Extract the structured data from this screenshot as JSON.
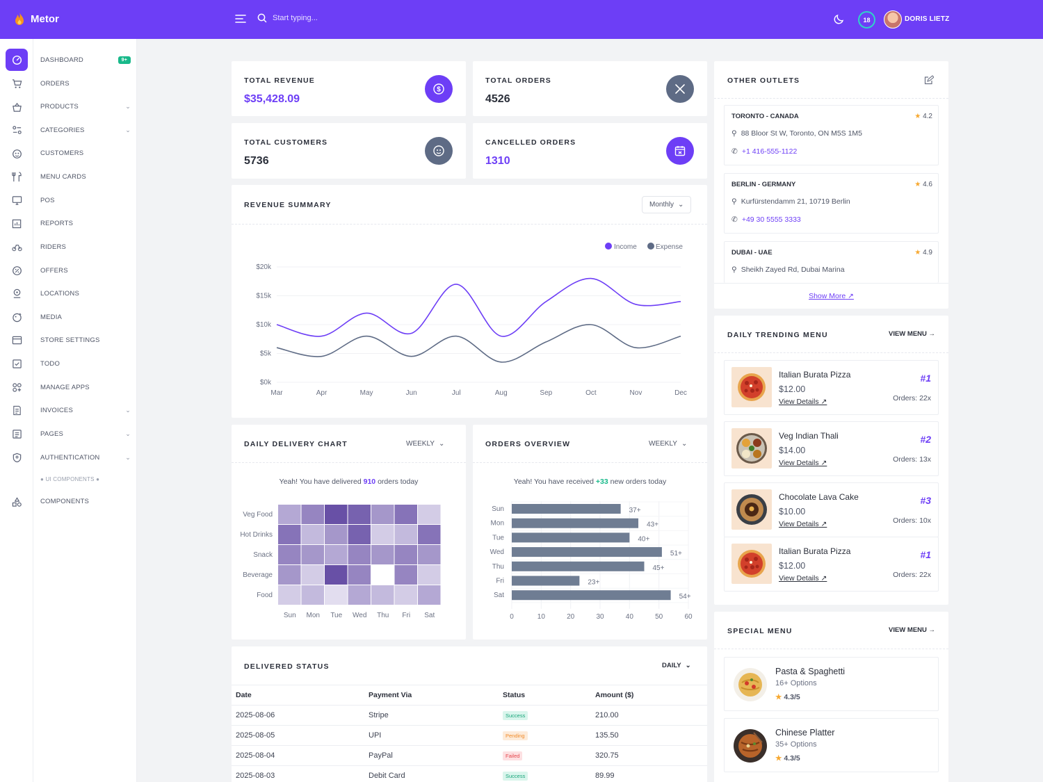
{
  "app": {
    "name": "Metor"
  },
  "header": {
    "search_placeholder": "Start typing...",
    "notification_count": "18",
    "user_name": "DORIS LIETZ"
  },
  "sidebar": {
    "items": [
      {
        "label": "DASHBOARD",
        "badge": "9+"
      },
      {
        "label": "ORDERS"
      },
      {
        "label": "PRODUCTS"
      },
      {
        "label": "CATEGORIES"
      },
      {
        "label": "CUSTOMERS"
      },
      {
        "label": "MENU CARDS"
      },
      {
        "label": "POS"
      },
      {
        "label": "REPORTS"
      },
      {
        "label": "RIDERS"
      },
      {
        "label": "OFFERS"
      },
      {
        "label": "LOCATIONS"
      },
      {
        "label": "MEDIA"
      },
      {
        "label": "STORE SETTINGS"
      },
      {
        "label": "TODO"
      },
      {
        "label": "MANAGE APPS"
      },
      {
        "label": "INVOICES"
      },
      {
        "label": "PAGES"
      },
      {
        "label": "AUTHENTICATION"
      }
    ],
    "section_label": "UI COMPONENTS",
    "components_label": "COMPONENTS"
  },
  "stats": {
    "revenue": {
      "label": "TOTAL REVENUE",
      "value": "$35,428.09"
    },
    "orders": {
      "label": "TOTAL ORDERS",
      "value": "4526"
    },
    "customers": {
      "label": "TOTAL CUSTOMERS",
      "value": "5736"
    },
    "cancelled": {
      "label": "CANCELLED ORDERS",
      "value": "1310"
    }
  },
  "revenue_summary": {
    "title": "REVENUE SUMMARY",
    "period": "Monthly"
  },
  "daily_delivery": {
    "title": "DAILY DELIVERY CHART",
    "period": "WEEKLY",
    "msg_prefix": "Yeah! You have delivered",
    "msg_count": "910",
    "msg_suffix": "orders today"
  },
  "orders_overview": {
    "title": "ORDERS OVERVIEW",
    "period": "WEEKLY",
    "msg_prefix": "Yeah! You have received",
    "msg_count": "+33",
    "msg_suffix": "new orders today"
  },
  "delivered_status": {
    "title": "DELIVERED STATUS",
    "period": "DAILY",
    "headers": [
      "Date",
      "Payment Via",
      "Status",
      "Amount ($)"
    ],
    "rows": [
      {
        "date": "2025-08-06",
        "via": "Stripe",
        "status": "Success",
        "amount": "210.00"
      },
      {
        "date": "2025-08-05",
        "via": "UPI",
        "status": "Pending",
        "amount": "135.50"
      },
      {
        "date": "2025-08-04",
        "via": "PayPal",
        "status": "Failed",
        "amount": "320.75"
      },
      {
        "date": "2025-08-03",
        "via": "Debit Card",
        "status": "Success",
        "amount": "89.99"
      }
    ]
  },
  "outlets": {
    "title": "OTHER OUTLETS",
    "items": [
      {
        "name": "TORONTO - CANADA",
        "rating": "4.2",
        "address": "88 Bloor St W, Toronto, ON M5S 1M5",
        "phone": "+1 416-555-1122"
      },
      {
        "name": "BERLIN - GERMANY",
        "rating": "4.6",
        "address": "Kurfürstendamm 21, 10719 Berlin",
        "phone": "+49 30 5555 3333"
      },
      {
        "name": "DUBAI - UAE",
        "rating": "4.9",
        "address": "Sheikh Zayed Rd, Dubai Marina"
      }
    ],
    "show_more": "Show More"
  },
  "trending": {
    "title": "DAILY TRENDING MENU",
    "view_label": "VIEW MENU",
    "items": [
      {
        "name": "Italian Burata Pizza",
        "price": "$12.00",
        "link": "View Details",
        "rank": "#1",
        "orders": "Orders: 22x"
      },
      {
        "name": "Veg Indian Thali",
        "price": "$14.00",
        "link": "View Details",
        "rank": "#2",
        "orders": "Orders: 13x"
      },
      {
        "name": "Chocolate Lava Cake",
        "price": "$10.00",
        "link": "View Details",
        "rank": "#3",
        "orders": "Orders: 10x"
      },
      {
        "name": "Italian Burata Pizza",
        "price": "$12.00",
        "link": "View Details",
        "rank": "#1",
        "orders": "Orders: 22x"
      }
    ]
  },
  "special": {
    "title": "SPECIAL MENU",
    "view_label": "VIEW MENU",
    "items": [
      {
        "name": "Pasta & Spaghetti",
        "options": "16+ Options",
        "rating": "4.3/5"
      },
      {
        "name": "Chinese Platter",
        "options": "35+ Options",
        "rating": "4.3/5"
      }
    ]
  },
  "colors": {
    "accent": "#6d3ef6",
    "expense": "#5e6b85",
    "bar": "#6f7d93"
  },
  "chart_data": [
    {
      "type": "line",
      "title": "REVENUE SUMMARY",
      "categories": [
        "Mar",
        "Apr",
        "May",
        "Jun",
        "Jul",
        "Aug",
        "Sep",
        "Oct",
        "Nov",
        "Dec"
      ],
      "series": [
        {
          "name": "Income",
          "values": [
            10000,
            8000,
            12000,
            8500,
            17000,
            8000,
            14000,
            18000,
            13500,
            14000
          ]
        },
        {
          "name": "Expense",
          "values": [
            6000,
            4500,
            8000,
            4500,
            8000,
            3500,
            7000,
            10000,
            6000,
            8000
          ]
        }
      ],
      "ylim": [
        0,
        20000
      ],
      "yticks": [
        "$0k",
        "$5k",
        "$10k",
        "$15k",
        "$20k"
      ],
      "legend": "top-right"
    },
    {
      "type": "heatmap",
      "title": "DAILY DELIVERY CHART",
      "x": [
        "Sun",
        "Mon",
        "Tue",
        "Wed",
        "Thu",
        "Fri",
        "Sat"
      ],
      "y": [
        "Veg Food",
        "Hot Drinks",
        "Snack",
        "Beverage",
        "Food"
      ],
      "values": [
        [
          4,
          6,
          9,
          8,
          5,
          7,
          2
        ],
        [
          7,
          3,
          5,
          8,
          2,
          3,
          7
        ],
        [
          6,
          5,
          4,
          6,
          5,
          6,
          5
        ],
        [
          5,
          2,
          9,
          6,
          0,
          6,
          2
        ],
        [
          2,
          3,
          1,
          4,
          3,
          2,
          4
        ]
      ]
    },
    {
      "type": "bar",
      "orientation": "horizontal",
      "title": "ORDERS OVERVIEW",
      "categories": [
        "Sun",
        "Mon",
        "Tue",
        "Wed",
        "Thu",
        "Fri",
        "Sat"
      ],
      "values": [
        37,
        43,
        40,
        51,
        45,
        23,
        54
      ],
      "data_labels": [
        "37+",
        "43+",
        "40+",
        "51+",
        "45+",
        "23+",
        "54+"
      ],
      "xlim": [
        0,
        60
      ],
      "xticks": [
        "0",
        "10",
        "20",
        "30",
        "40",
        "50",
        "60"
      ]
    }
  ]
}
